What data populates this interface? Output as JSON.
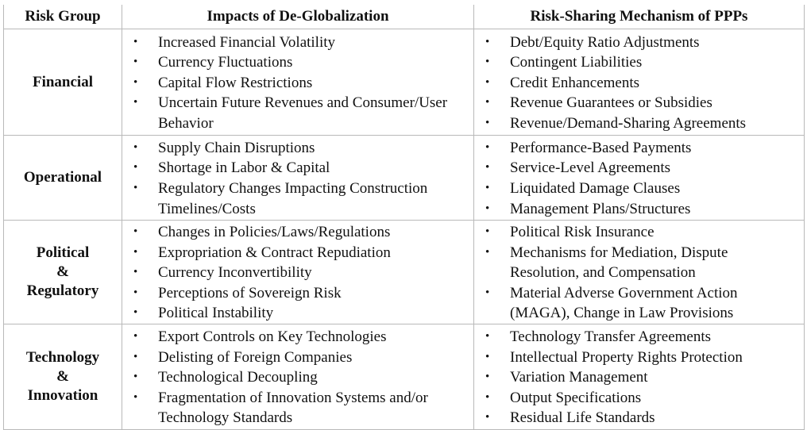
{
  "headers": [
    "Risk Group",
    "Impacts of De-Globalization",
    "Risk-Sharing Mechanism of PPPs"
  ],
  "bullet_glyph": "•",
  "rows": [
    {
      "group": [
        "Financial"
      ],
      "impacts": [
        "Increased Financial Volatility",
        "Currency Fluctuations",
        "Capital Flow Restrictions",
        "Uncertain Future Revenues and Consumer/User Behavior"
      ],
      "mechanisms": [
        "Debt/Equity Ratio Adjustments",
        "Contingent Liabilities",
        "Credit Enhancements",
        "Revenue Guarantees or Subsidies",
        "Revenue/Demand-Sharing Agreements"
      ]
    },
    {
      "group": [
        "Operational"
      ],
      "impacts": [
        "Supply Chain Disruptions",
        "Shortage in Labor & Capital",
        "Regulatory Changes Impacting Construction Timelines/Costs"
      ],
      "mechanisms": [
        "Performance-Based Payments",
        "Service-Level Agreements",
        "Liquidated Damage Clauses",
        "Management Plans/Structures"
      ]
    },
    {
      "group": [
        "Political",
        "&",
        "Regulatory"
      ],
      "impacts": [
        "Changes in Policies/Laws/Regulations",
        "Expropriation & Contract Repudiation",
        "Currency Inconvertibility",
        "Perceptions of Sovereign Risk",
        "Political Instability"
      ],
      "mechanisms": [
        "Political Risk Insurance",
        "Mechanisms for Mediation, Dispute Resolution, and Compensation",
        "Material Adverse Government Action (MAGA), Change in Law Provisions"
      ]
    },
    {
      "group": [
        "Technology",
        "&",
        "Innovation"
      ],
      "impacts": [
        "Export Controls on Key Technologies",
        "Delisting of Foreign Companies",
        "Technological Decoupling",
        "Fragmentation of Innovation Systems and/or Technology Standards"
      ],
      "mechanisms": [
        "Technology Transfer Agreements",
        "Intellectual Property Rights Protection",
        "Variation Management",
        "Output Specifications",
        "Residual Life Standards"
      ]
    }
  ]
}
